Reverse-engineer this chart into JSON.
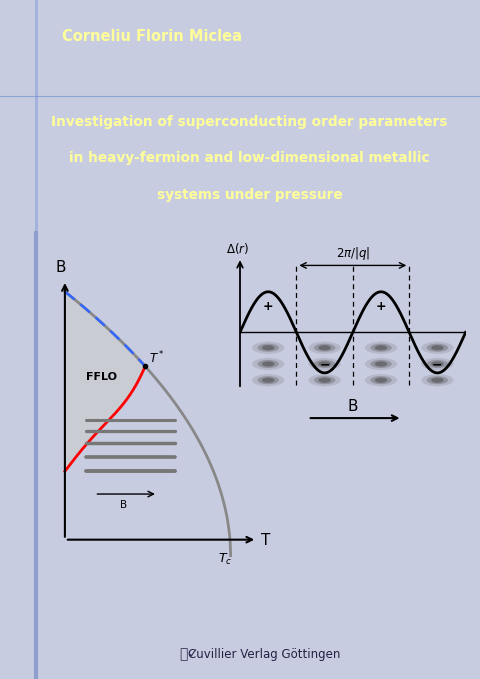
{
  "bg_header_color": "#003a9e",
  "bg_content_color": "#c8cce0",
  "bg_title_color": "#0040b0",
  "author": "Corneliu Florin Miclea",
  "title_line1": "Investigation of superconducting order parameters",
  "title_line2": "in heavy-fermion and low-dimensional metallic",
  "title_line3": "systems under pressure",
  "publisher": "Cuvillier Verlag Göttingen",
  "author_color": "#ffff99",
  "title_color": "#ffff99",
  "left_stripe_color": "#7788cc",
  "fig_width": 4.8,
  "fig_height": 6.79,
  "dpi": 100
}
